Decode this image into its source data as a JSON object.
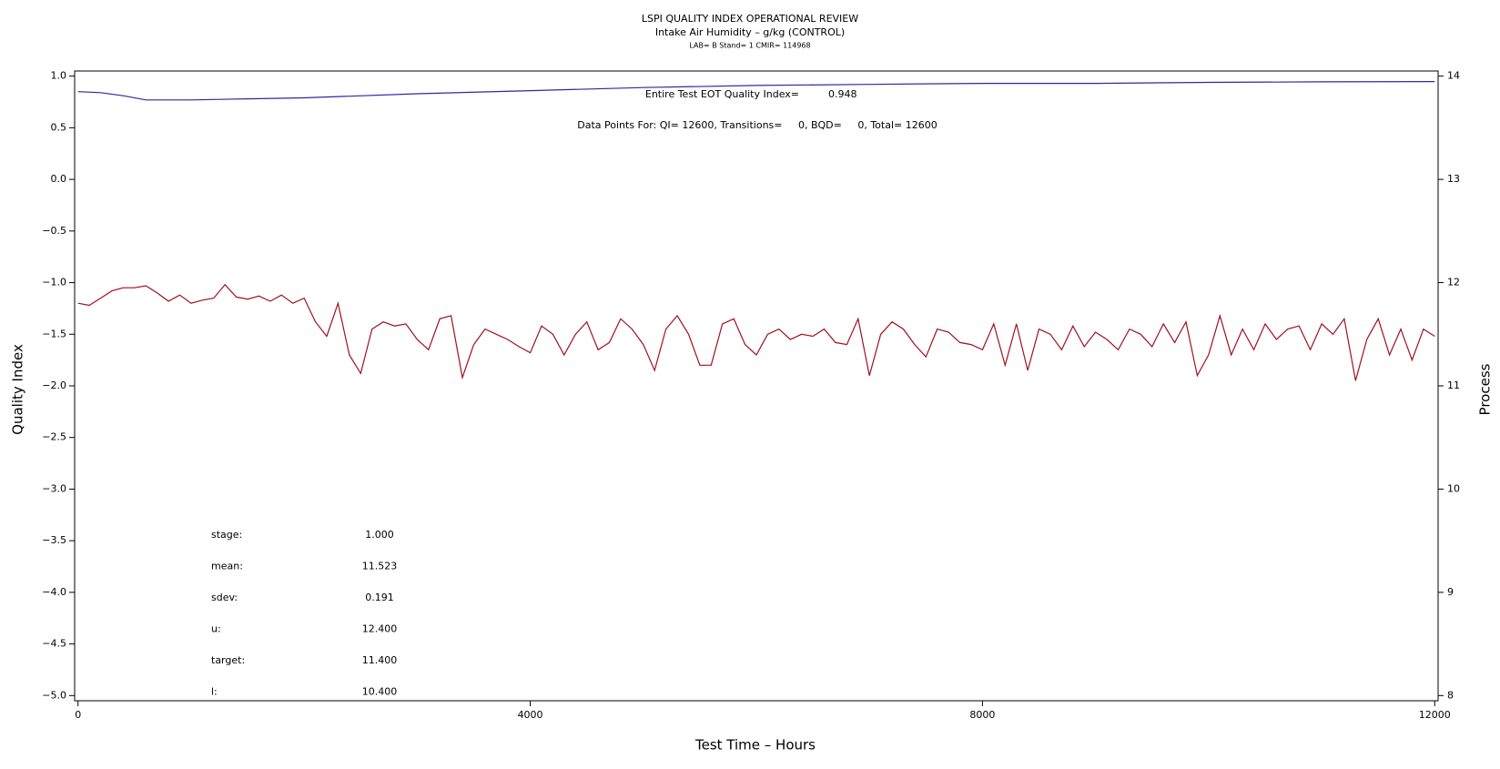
{
  "chart_data": {
    "type": "line",
    "title": "LSPI QUALITY INDEX OPERATIONAL REVIEW",
    "subtitle": "Intake Air Humidity – g/kg (CONTROL)",
    "caption": "LAB= B Stand= 1 CMIR= 114968",
    "xlabel": "Test Time – Hours",
    "ylabel": "Quality Index",
    "y2label": "Process",
    "annotations": {
      "qi_label": "Entire Test EOT Quality Index=",
      "qi_value": "0.948",
      "points": "Data Points For: QI= 12600, Transitions=     0, BQD=     0, Total= 12600"
    },
    "stats": [
      {
        "label": "stage:",
        "value": "1.000"
      },
      {
        "label": "mean:",
        "value": "11.523"
      },
      {
        "label": "sdev:",
        "value": "0.191"
      },
      {
        "label": "u:",
        "value": "12.400"
      },
      {
        "label": "target:",
        "value": "11.400"
      },
      {
        "label": "l:",
        "value": "10.400"
      }
    ],
    "xlim": [
      -30,
      12030
    ],
    "xticks": [
      0,
      4000,
      8000,
      12000
    ],
    "ylim": [
      -5.05,
      1.05
    ],
    "yticks": [
      {
        "value": -5,
        "label": "−5.0"
      },
      {
        "value": -4.5,
        "label": "−4.5"
      },
      {
        "value": -4,
        "label": "−4.0"
      },
      {
        "value": -3.5,
        "label": "−3.5"
      },
      {
        "value": -3,
        "label": "−3.0"
      },
      {
        "value": -2.5,
        "label": "−2.5"
      },
      {
        "value": -2,
        "label": "−2.0"
      },
      {
        "value": -1.5,
        "label": "−1.5"
      },
      {
        "value": -1,
        "label": "−1.0"
      },
      {
        "value": -0.5,
        "label": "−0.5"
      },
      {
        "value": 0,
        "label": "0.0"
      },
      {
        "value": 0.5,
        "label": "0.5"
      },
      {
        "value": 1,
        "label": "1.0"
      }
    ],
    "y2lim": [
      7.95,
      14.05
    ],
    "y2ticks": [
      8,
      9,
      10,
      11,
      12,
      13,
      14
    ],
    "series": [
      {
        "name": "Quality Index",
        "color": "#2a2aa0",
        "axis": "y",
        "x": [
          0,
          200,
          400,
          600,
          800,
          1000,
          1500,
          2000,
          3000,
          4000,
          5000,
          6000,
          7000,
          8000,
          9000,
          10000,
          11000,
          12000
        ],
        "values": [
          0.85,
          0.84,
          0.81,
          0.77,
          0.77,
          0.77,
          0.78,
          0.79,
          0.83,
          0.86,
          0.89,
          0.91,
          0.92,
          0.93,
          0.93,
          0.94,
          0.945,
          0.948
        ]
      },
      {
        "name": "Process",
        "color": "#a01020",
        "axis": "y2",
        "x": [
          0,
          100,
          200,
          300,
          400,
          500,
          600,
          700,
          800,
          900,
          1000,
          1100,
          1200,
          1300,
          1400,
          1500,
          1600,
          1700,
          1800,
          1900,
          2000,
          2100,
          2200,
          2300,
          2400,
          2500,
          2600,
          2700,
          2800,
          2900,
          3000,
          3100,
          3200,
          3300,
          3400,
          3500,
          3600,
          3700,
          3800,
          3900,
          4000,
          4100,
          4200,
          4300,
          4400,
          4500,
          4600,
          4700,
          4800,
          4900,
          5000,
          5100,
          5200,
          5300,
          5400,
          5500,
          5600,
          5700,
          5800,
          5900,
          6000,
          6100,
          6200,
          6300,
          6400,
          6500,
          6600,
          6700,
          6800,
          6900,
          7000,
          7100,
          7200,
          7300,
          7400,
          7500,
          7600,
          7700,
          7800,
          7900,
          8000,
          8100,
          8200,
          8300,
          8400,
          8500,
          8600,
          8700,
          8800,
          8900,
          9000,
          9100,
          9200,
          9300,
          9400,
          9500,
          9600,
          9700,
          9800,
          9900,
          10000,
          10100,
          10200,
          10300,
          10400,
          10500,
          10600,
          10700,
          10800,
          10900,
          11000,
          11100,
          11200,
          11300,
          11400,
          11500,
          11600,
          11700,
          11800,
          11900,
          12000
        ],
        "values": [
          11.8,
          11.78,
          11.85,
          11.92,
          11.95,
          11.95,
          11.97,
          11.9,
          11.82,
          11.88,
          11.8,
          11.83,
          11.85,
          11.98,
          11.86,
          11.84,
          11.87,
          11.82,
          11.88,
          11.8,
          11.85,
          11.62,
          11.48,
          11.8,
          11.3,
          11.12,
          11.55,
          11.62,
          11.58,
          11.6,
          11.45,
          11.35,
          11.65,
          11.68,
          11.08,
          11.4,
          11.55,
          11.5,
          11.45,
          11.38,
          11.32,
          11.58,
          11.5,
          11.3,
          11.5,
          11.62,
          11.35,
          11.42,
          11.65,
          11.55,
          11.4,
          11.15,
          11.55,
          11.68,
          11.5,
          11.2,
          11.2,
          11.6,
          11.65,
          11.4,
          11.3,
          11.5,
          11.55,
          11.45,
          11.5,
          11.48,
          11.55,
          11.42,
          11.4,
          11.65,
          11.1,
          11.5,
          11.62,
          11.55,
          11.4,
          11.28,
          11.55,
          11.52,
          11.42,
          11.4,
          11.35,
          11.6,
          11.2,
          11.6,
          11.15,
          11.55,
          11.5,
          11.35,
          11.58,
          11.38,
          11.52,
          11.45,
          11.35,
          11.55,
          11.5,
          11.38,
          11.6,
          11.42,
          11.62,
          11.1,
          11.3,
          11.68,
          11.3,
          11.55,
          11.35,
          11.6,
          11.45,
          11.55,
          11.58,
          11.35,
          11.6,
          11.5,
          11.65,
          11.05,
          11.45,
          11.65,
          11.3,
          11.55,
          11.25,
          11.55,
          11.48
        ]
      }
    ]
  }
}
